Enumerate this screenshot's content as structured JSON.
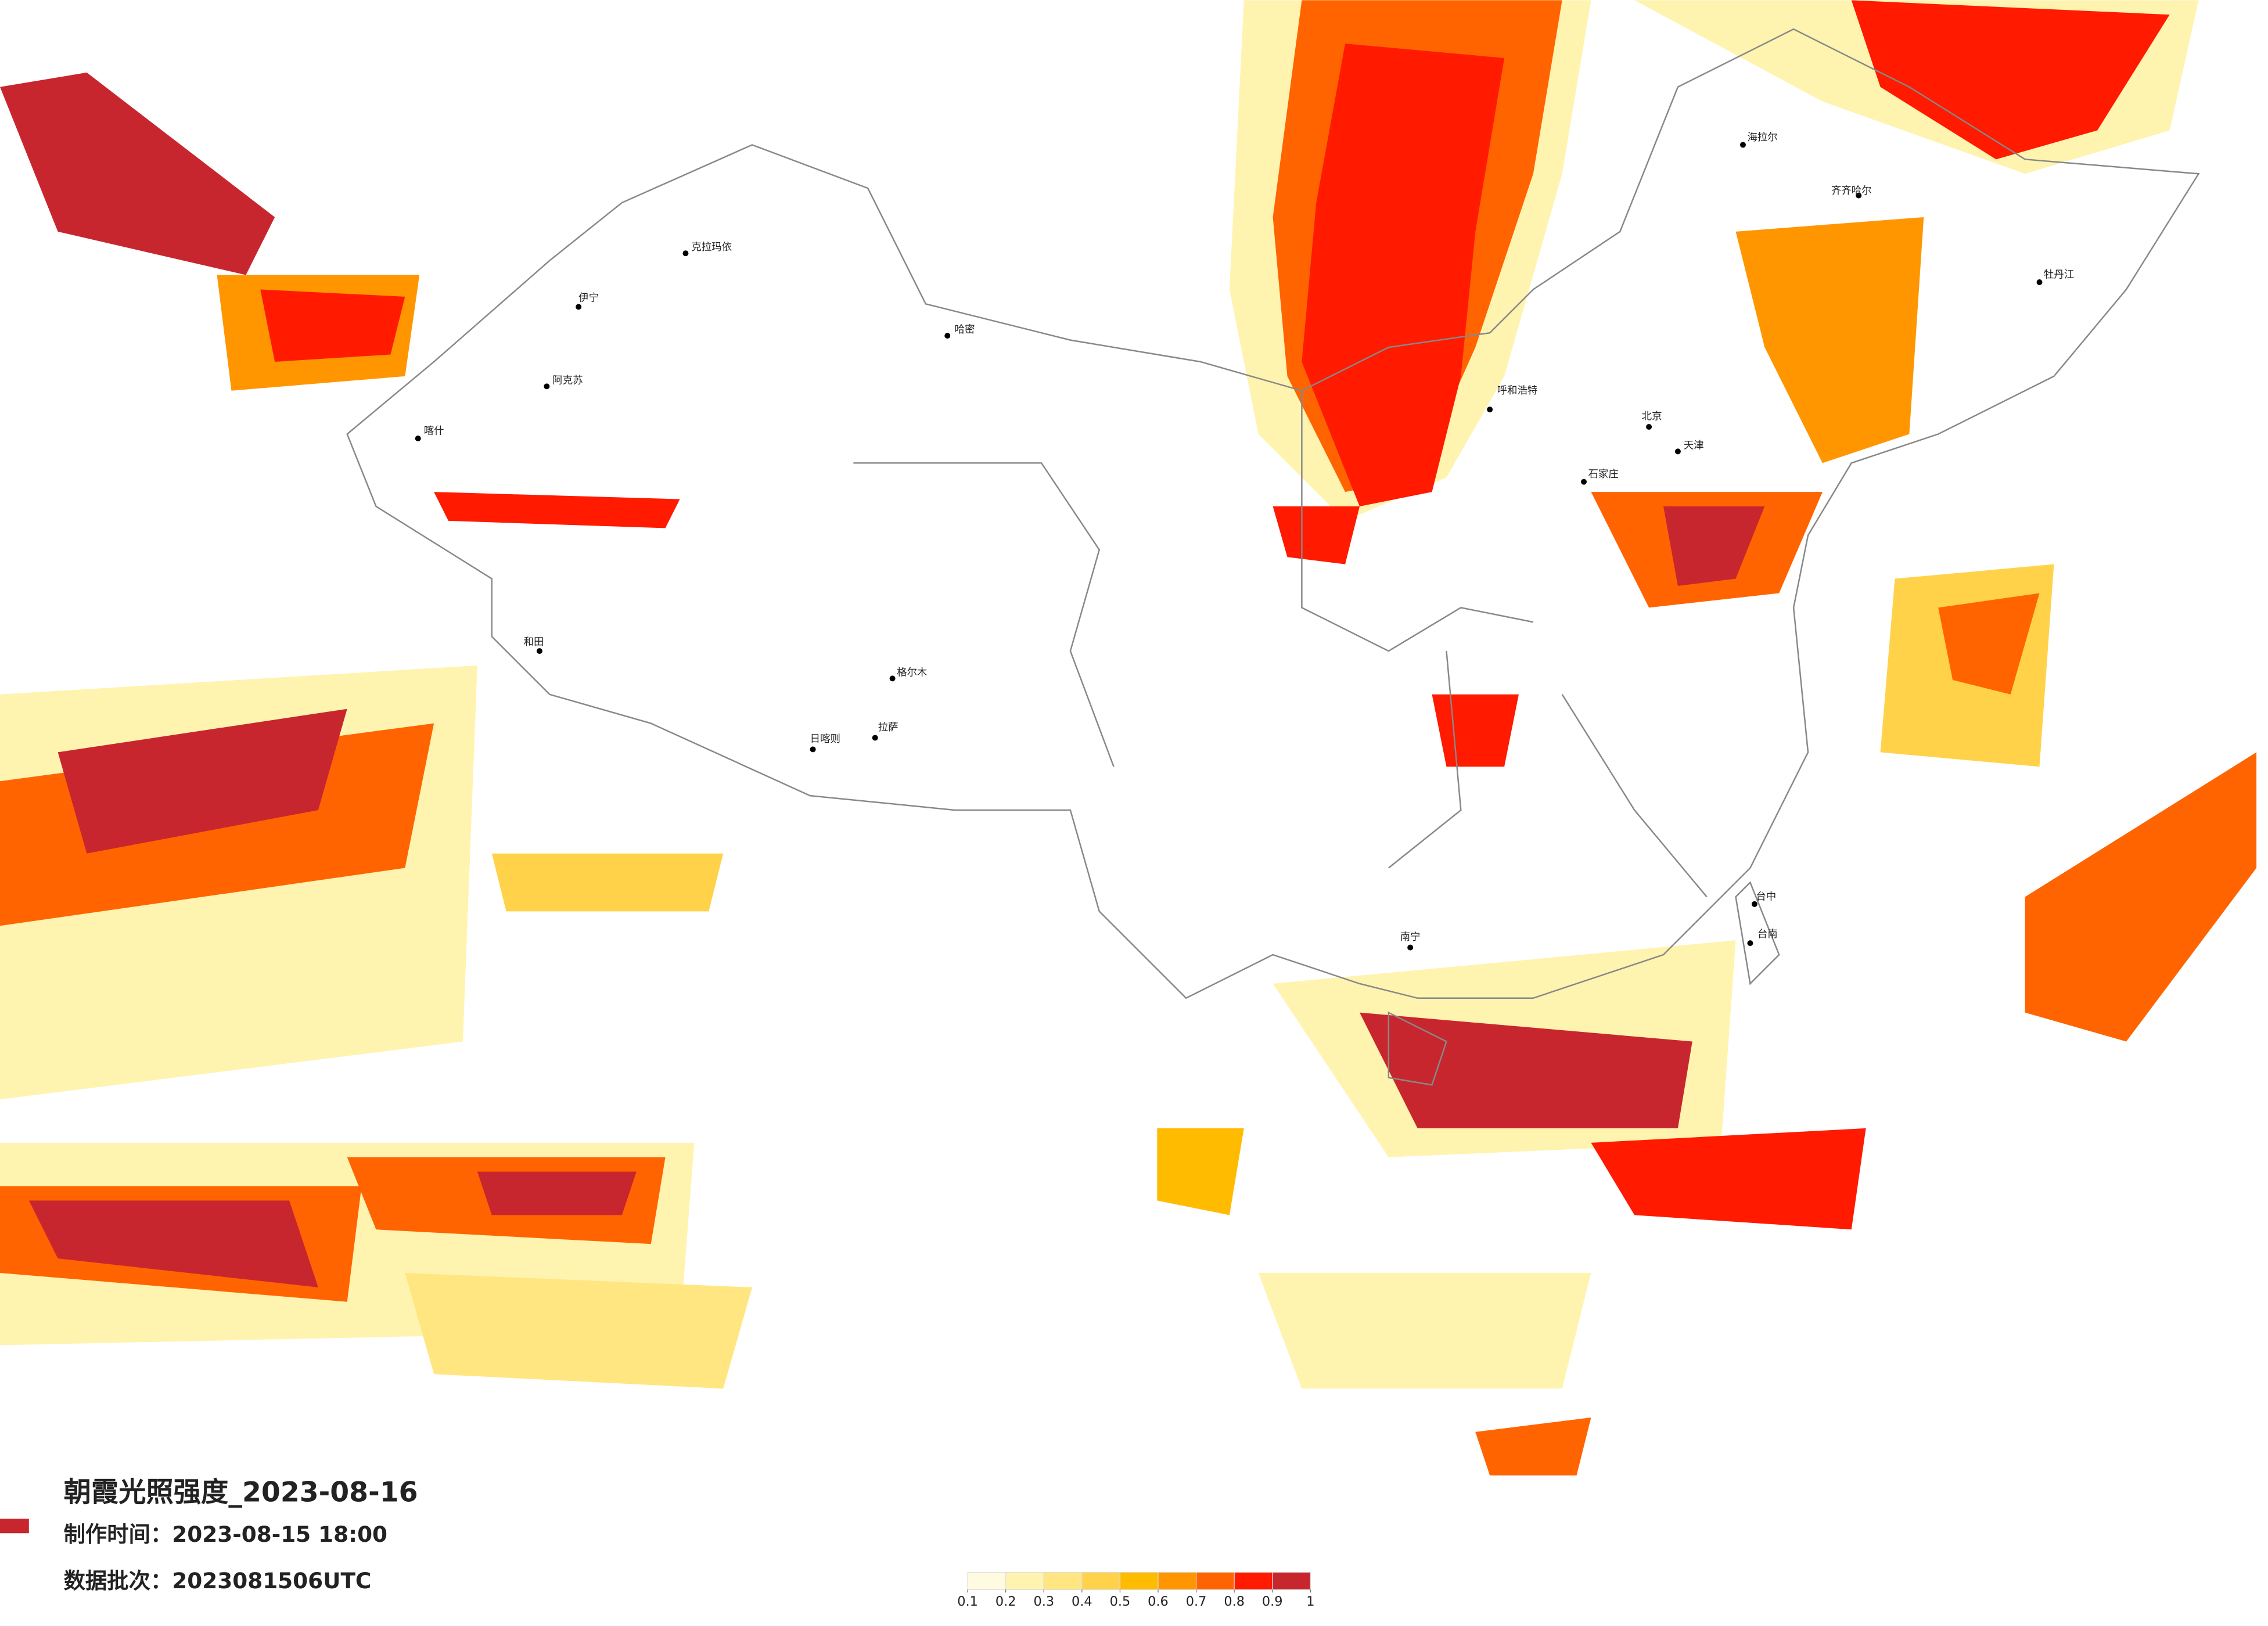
{
  "title": "朝霞光照强度_2023-08-16",
  "info": [
    "制作时间：2023-08-15 18:00",
    "数据批次：2023081506UTC"
  ],
  "legend": {
    "ticks": [
      0.1,
      0.2,
      0.3,
      0.4,
      0.5,
      0.6,
      0.7,
      0.8,
      0.9,
      1
    ],
    "colors": [
      "#fffbe0",
      "#fff3b0",
      "#ffe680",
      "#ffd24a",
      "#ffbb00",
      "#ff9600",
      "#ff6400",
      "#ff1a00",
      "#c8262e"
    ]
  },
  "cities": [
    "克拉玛依",
    "伊宁",
    "阿克苏",
    "喀什",
    "哈密",
    "和田",
    "格尔木",
    "拉萨",
    "日喀则",
    "呼和浩特",
    "北京",
    "天津",
    "石家庄",
    "海拉尔",
    "齐齐哈尔",
    "牡丹江",
    "南宁",
    "台中",
    "台南"
  ]
}
